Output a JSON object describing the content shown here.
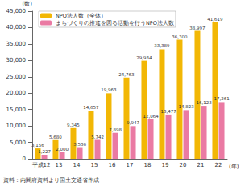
{
  "chart_data": {
    "type": "bar",
    "y_label": "(数)",
    "x_label": "(年)",
    "source": "資料：内閣府資料より国土交通省作成",
    "categories": [
      "平成12",
      "13",
      "14",
      "15",
      "16",
      "17",
      "18",
      "19",
      "20",
      "21",
      "22"
    ],
    "series": [
      {
        "name": "NPO法人数（全体）",
        "color": "#f2b705",
        "values": [
          3156,
          5680,
          9345,
          14657,
          19963,
          24763,
          29934,
          33389,
          36300,
          38997,
          41619
        ],
        "value_labels": [
          "3,156",
          "5,680",
          "9,345",
          "14,657",
          "19,963",
          "24,763",
          "29,934",
          "33,389",
          "36,300",
          "38,997",
          "41,619"
        ]
      },
      {
        "name": "まちづくりの推進を図る活動を行うNPO法人数",
        "color": "#ea7aa3",
        "values": [
          1227,
          2000,
          3536,
          5742,
          7898,
          9947,
          12064,
          13477,
          14823,
          16123,
          17261
        ],
        "value_labels": [
          "1,227",
          "2,000",
          "3,536",
          "5,742",
          "7,898",
          "9,947",
          "12,064",
          "13,477",
          "14,823",
          "16,123",
          "17,261"
        ]
      }
    ],
    "ylim": [
      0,
      45000
    ],
    "yticks": [
      0,
      {
        "value": 5000,
        "label": "5,000"
      },
      {
        "value": 10000,
        "label": "10,000"
      },
      {
        "value": 15000,
        "label": "15,000"
      },
      {
        "value": 20000,
        "label": "20,000"
      },
      {
        "value": 25000,
        "label": "25,000"
      },
      {
        "value": 30000,
        "label": "30,000"
      },
      {
        "value": 35000,
        "label": "35,000"
      },
      {
        "value": 40000,
        "label": "40,000"
      },
      {
        "value": 45000,
        "label": "45,000"
      }
    ],
    "grid": false,
    "legend": "top-left",
    "data_labels": true
  }
}
